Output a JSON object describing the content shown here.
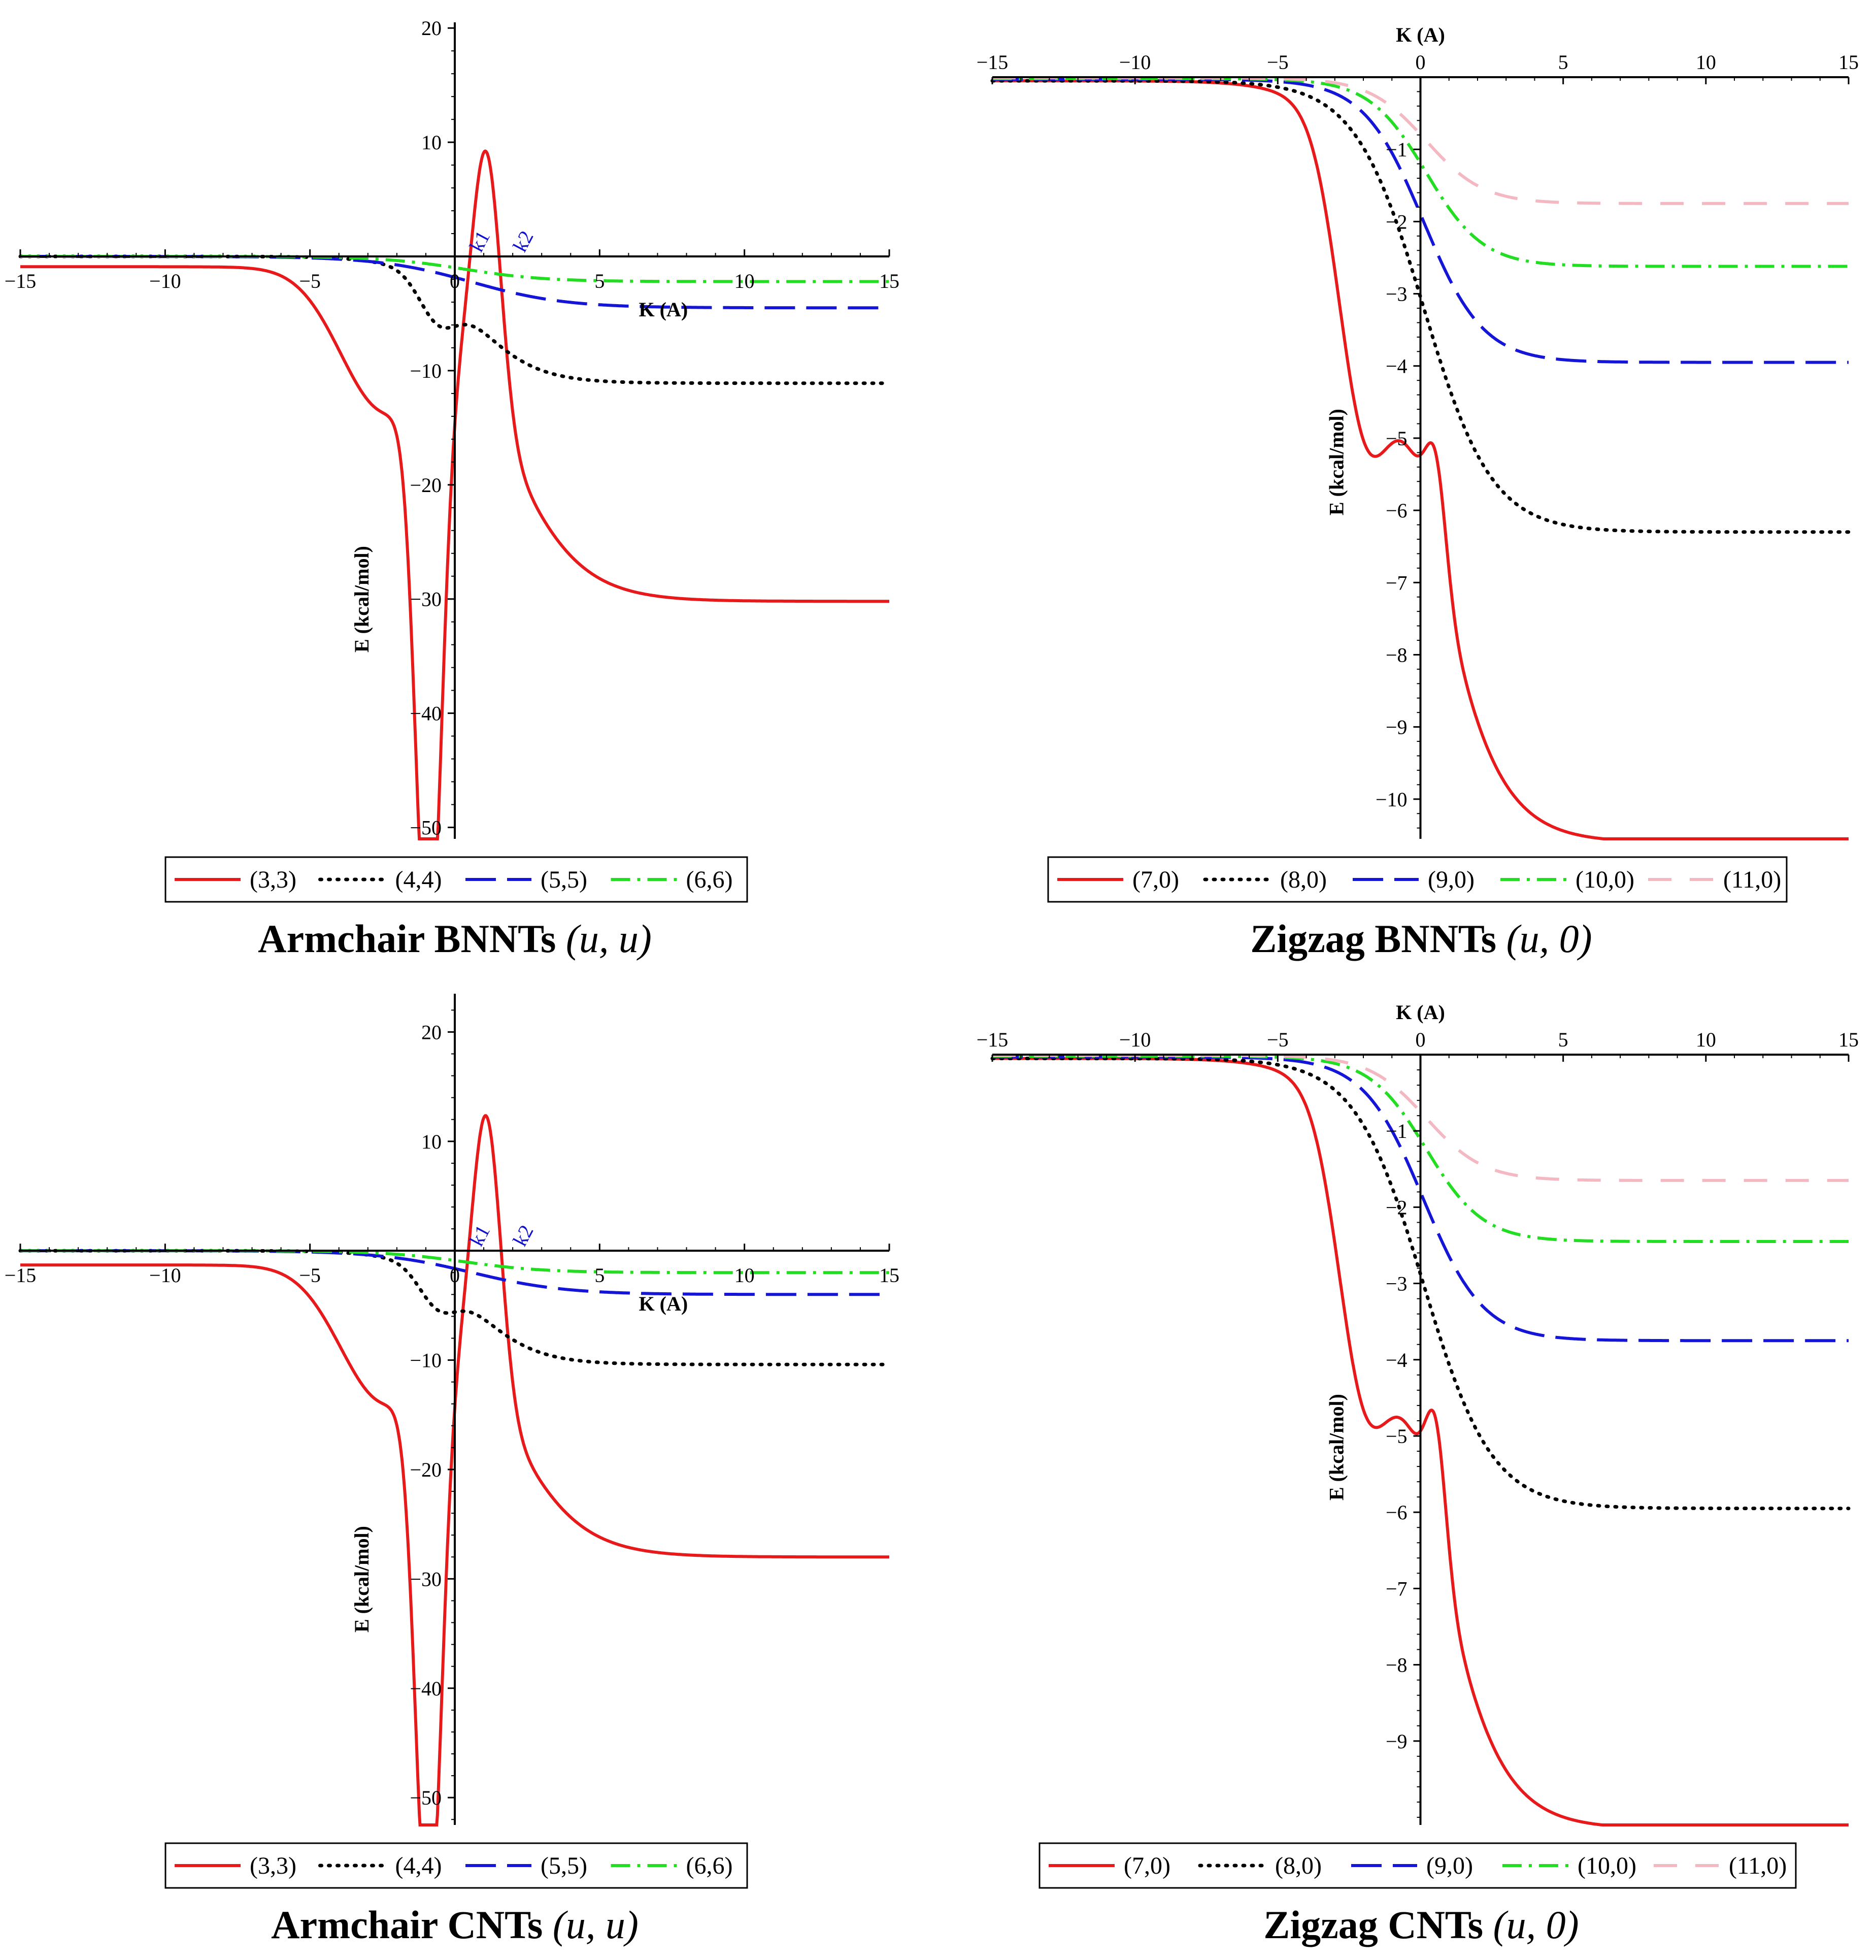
{
  "colors": {
    "red": "#e8191a",
    "black": "#000000",
    "blue": "#1515d8",
    "green": "#22dd22",
    "pink": "#f4b8c3"
  },
  "chart_data": [
    {
      "type": "line",
      "title": "Armchair BNNTs",
      "title_args": "(u, u)",
      "xlabel": "K (A)",
      "ylabel": "E (kcal/mol)",
      "xlim": [
        -15,
        15
      ],
      "ylim": [
        -51,
        20.5
      ],
      "xticks": [
        -15,
        -10,
        -5,
        0,
        5,
        10,
        15
      ],
      "yticks": [
        20,
        10,
        -10,
        -20,
        -30,
        -40,
        -50
      ],
      "annotations": [
        "k1",
        "k2"
      ],
      "legend": "bottom",
      "series": [
        {
          "name": "(3,3)",
          "style": "solid",
          "color": "red",
          "params": {
            "a": -0.9,
            "b": -30.2,
            "x0": 1.6,
            "w": 1.3,
            "g": -52,
            "gm": -0.9,
            "gs": 0.62,
            "p": 22.5,
            "pm": 1.1,
            "ps": 0.7,
            "h": -11.5,
            "hm": -2.5,
            "hs": 2.1
          }
        },
        {
          "name": "(4,4)",
          "style": "dotted",
          "color": "black",
          "params": {
            "a": 0,
            "b": -11.1,
            "x0": 0.6,
            "w": 1.1,
            "g": -3.2,
            "gm": -0.6,
            "gs": 0.9,
            "p": 0,
            "pm": 0,
            "ps": 1,
            "h": 0,
            "hm": 0,
            "hs": 1
          }
        },
        {
          "name": "(5,5)",
          "style": "dashed",
          "color": "blue",
          "params": {
            "a": 0,
            "b": -4.5,
            "x0": 0.6,
            "w": 1.6,
            "g": 0,
            "gm": 0,
            "gs": 1,
            "p": 0,
            "pm": 0,
            "ps": 1,
            "h": 0,
            "hm": 0,
            "hs": 1
          }
        },
        {
          "name": "(6,6)",
          "style": "dashdot",
          "color": "green",
          "params": {
            "a": 0,
            "b": -2.2,
            "x0": 0.3,
            "w": 1.4,
            "g": 0,
            "gm": 0,
            "gs": 1,
            "p": 0,
            "pm": 0,
            "ps": 1,
            "h": 0,
            "hm": 0,
            "hs": 1
          }
        }
      ]
    },
    {
      "type": "line",
      "title": "Zigzag BNNTs",
      "title_args": "(u, 0)",
      "xlabel": "K (A)",
      "ylabel": "E (kcal/mol)",
      "xlim": [
        -15,
        15
      ],
      "ylim": [
        -10.55,
        0
      ],
      "xticks": [
        -15,
        -10,
        -5,
        0,
        5,
        10,
        15
      ],
      "yticks": [
        -1,
        -2,
        -3,
        -4,
        -5,
        -6,
        -7,
        -8,
        -9,
        -10
      ],
      "legend": "bottom",
      "series": [
        {
          "name": "(7,0)",
          "style": "solid",
          "color": "red",
          "params": {
            "a": -0.05,
            "b": -10.6,
            "x0": 0,
            "w": 1.2,
            "g": -3.3,
            "gm": -2.0,
            "gs": 1.3,
            "p": 1.35,
            "pm": 0.55,
            "ps": 0.5,
            "h": 0,
            "hm": 0,
            "hs": 1
          }
        },
        {
          "name": "(8,0)",
          "style": "dotted",
          "color": "black",
          "params": {
            "a": -0.05,
            "b": -6.3,
            "x0": 0.1,
            "w": 1.2,
            "g": 0,
            "gm": 0,
            "gs": 1,
            "p": 0,
            "pm": 0,
            "ps": 1,
            "h": 0,
            "hm": 0,
            "hs": 1
          }
        },
        {
          "name": "(9,0)",
          "style": "dashed",
          "color": "blue",
          "params": {
            "a": -0.03,
            "b": -3.95,
            "x0": 0.1,
            "w": 1.05,
            "g": 0,
            "gm": 0,
            "gs": 1,
            "p": 0,
            "pm": 0,
            "ps": 1,
            "h": 0,
            "hm": 0,
            "hs": 1
          }
        },
        {
          "name": "(10,0)",
          "style": "dashdot",
          "color": "green",
          "params": {
            "a": -0.02,
            "b": -2.62,
            "x0": 0.2,
            "w": 1.0,
            "g": 0,
            "gm": 0,
            "gs": 1,
            "p": 0,
            "pm": 0,
            "ps": 1,
            "h": 0,
            "hm": 0,
            "hs": 1
          }
        },
        {
          "name": "(11,0)",
          "style": "longdash",
          "color": "pink",
          "params": {
            "a": -0.01,
            "b": -1.75,
            "x0": 0.2,
            "w": 1.0,
            "g": 0,
            "gm": 0,
            "gs": 1,
            "p": 0,
            "pm": 0,
            "ps": 1,
            "h": 0,
            "hm": 0,
            "hs": 1
          }
        }
      ]
    },
    {
      "type": "line",
      "title": "Armchair CNTs",
      "title_args": "(u, u)",
      "xlabel": "K (A)",
      "ylabel": "E (kcal/mol)",
      "xlim": [
        -15,
        15
      ],
      "ylim": [
        -52.5,
        23.5
      ],
      "xticks": [
        -15,
        -10,
        -5,
        0,
        5,
        10,
        15
      ],
      "yticks": [
        20,
        10,
        -10,
        -20,
        -30,
        -40,
        -50
      ],
      "annotations": [
        "k1",
        "k2"
      ],
      "legend": "bottom",
      "series": [
        {
          "name": "(3,3)",
          "style": "solid",
          "color": "red",
          "params": {
            "a": -1.3,
            "b": -28.0,
            "x0": 1.6,
            "w": 1.3,
            "g": -52,
            "gm": -0.9,
            "gs": 0.62,
            "p": 25,
            "pm": 1.1,
            "ps": 0.7,
            "h": -11.5,
            "hm": -2.5,
            "hs": 2.1
          }
        },
        {
          "name": "(4,4)",
          "style": "dotted",
          "color": "black",
          "params": {
            "a": 0,
            "b": -10.4,
            "x0": 0.6,
            "w": 1.1,
            "g": -2.8,
            "gm": -0.6,
            "gs": 0.9,
            "p": 0,
            "pm": 0,
            "ps": 1,
            "h": 0,
            "hm": 0,
            "hs": 1
          }
        },
        {
          "name": "(5,5)",
          "style": "dashed",
          "color": "blue",
          "params": {
            "a": 0,
            "b": -4.0,
            "x0": 0.6,
            "w": 1.6,
            "g": 0,
            "gm": 0,
            "gs": 1,
            "p": 0,
            "pm": 0,
            "ps": 1,
            "h": 0,
            "hm": 0,
            "hs": 1
          }
        },
        {
          "name": "(6,6)",
          "style": "dashdot",
          "color": "green",
          "params": {
            "a": 0,
            "b": -2.0,
            "x0": 0.3,
            "w": 1.4,
            "g": 0,
            "gm": 0,
            "gs": 1,
            "p": 0,
            "pm": 0,
            "ps": 1,
            "h": 0,
            "hm": 0,
            "hs": 1
          }
        }
      ]
    },
    {
      "type": "line",
      "title": "Zigzag CNTs",
      "title_args": "(u, 0)",
      "xlabel": "K (A)",
      "ylabel": "E (kcal/mol)",
      "xlim": [
        -15,
        15
      ],
      "ylim": [
        -10.1,
        0
      ],
      "xticks": [
        -15,
        -10,
        -5,
        0,
        5,
        10,
        15
      ],
      "yticks": [
        -1,
        -2,
        -3,
        -4,
        -5,
        -6,
        -7,
        -8,
        -9
      ],
      "legend": "bottom",
      "series": [
        {
          "name": "(7,0)",
          "style": "solid",
          "color": "red",
          "params": {
            "a": -0.05,
            "b": -10.15,
            "x0": 0,
            "w": 1.2,
            "g": -3.0,
            "gm": -2.0,
            "gs": 1.3,
            "p": 1.5,
            "pm": 0.55,
            "ps": 0.5,
            "h": 0,
            "hm": 0,
            "hs": 1
          }
        },
        {
          "name": "(8,0)",
          "style": "dotted",
          "color": "black",
          "params": {
            "a": -0.05,
            "b": -5.95,
            "x0": 0.1,
            "w": 1.2,
            "g": 0,
            "gm": 0,
            "gs": 1,
            "p": 0,
            "pm": 0,
            "ps": 1,
            "h": 0,
            "hm": 0,
            "hs": 1
          }
        },
        {
          "name": "(9,0)",
          "style": "dashed",
          "color": "blue",
          "params": {
            "a": -0.03,
            "b": -3.75,
            "x0": 0.1,
            "w": 1.05,
            "g": 0,
            "gm": 0,
            "gs": 1,
            "p": 0,
            "pm": 0,
            "ps": 1,
            "h": 0,
            "hm": 0,
            "hs": 1
          }
        },
        {
          "name": "(10,0)",
          "style": "dashdot",
          "color": "green",
          "params": {
            "a": -0.02,
            "b": -2.45,
            "x0": 0.2,
            "w": 1.0,
            "g": 0,
            "gm": 0,
            "gs": 1,
            "p": 0,
            "pm": 0,
            "ps": 1,
            "h": 0,
            "hm": 0,
            "hs": 1
          }
        },
        {
          "name": "(11,0)",
          "style": "longdash",
          "color": "pink",
          "params": {
            "a": -0.01,
            "b": -1.65,
            "x0": 0.2,
            "w": 1.0,
            "g": 0,
            "gm": 0,
            "gs": 1,
            "p": 0,
            "pm": 0,
            "ps": 1,
            "h": 0,
            "hm": 0,
            "hs": 1
          }
        }
      ]
    }
  ]
}
